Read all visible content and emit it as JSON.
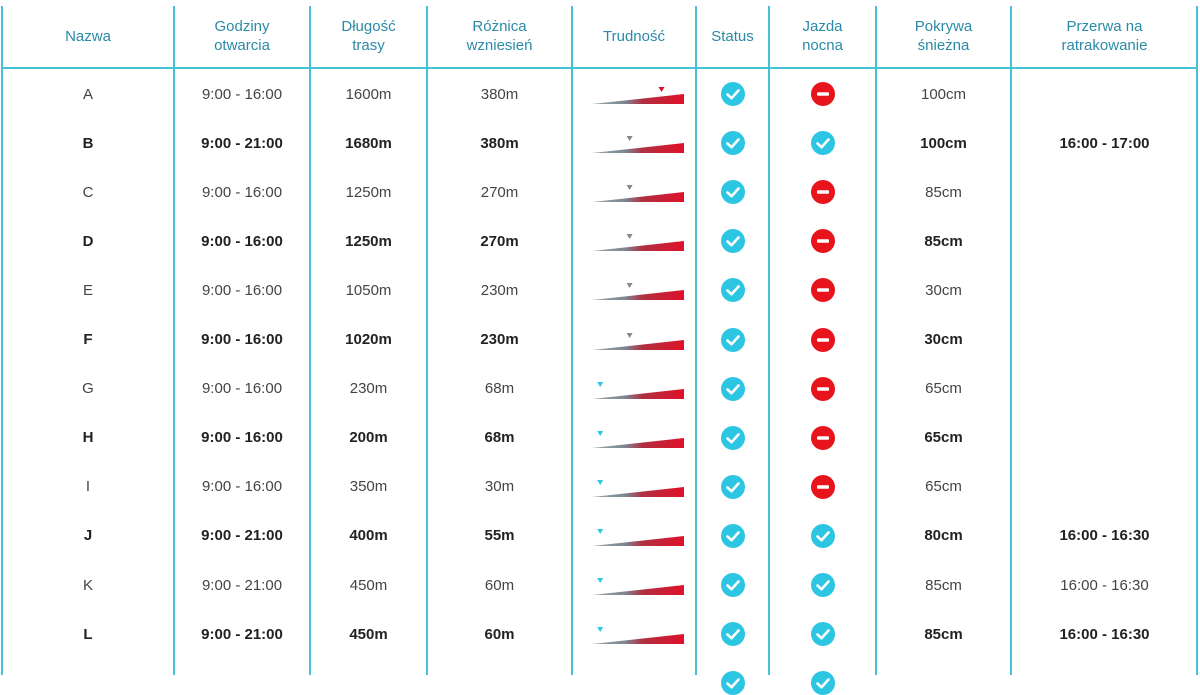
{
  "colors": {
    "border": "#46c2d6",
    "header_text": "#2b8aa6",
    "status_ok": "#2cc6e3",
    "status_closed": "#e8141c",
    "difficulty_red": "#e0102a",
    "difficulty_gray": "#888888"
  },
  "headers": {
    "name": "Nazwa",
    "hours": "Godziny\notwarcia",
    "length": "Długość\ntrasy",
    "elevation": "Różnica\nwzniesień",
    "difficulty": "Trudność",
    "status": "Status",
    "night": "Jazda\nnocna",
    "snow": "Pokrywa\nśnieżna",
    "grooming": "Przerwa na\nratrakowanie"
  },
  "rows": [
    {
      "name": "A",
      "hours": "9:00 - 16:00",
      "length": "1600m",
      "elevation": "380m",
      "difficulty": 0.78,
      "difficulty_marker": "red",
      "status": "open-check-icon",
      "night": "closed-icon",
      "snow": "100cm",
      "grooming": "",
      "bold": false
    },
    {
      "name": "B",
      "hours": "9:00 - 21:00",
      "length": "1680m",
      "elevation": "380m",
      "difficulty": 0.4,
      "difficulty_marker": "gray",
      "status": "open-check-icon",
      "night": "open-check-icon",
      "snow": "100cm",
      "grooming": "16:00 - 17:00",
      "bold": true
    },
    {
      "name": "C",
      "hours": "9:00 - 16:00",
      "length": "1250m",
      "elevation": "270m",
      "difficulty": 0.4,
      "difficulty_marker": "gray",
      "status": "open-check-icon",
      "night": "closed-icon",
      "snow": "85cm",
      "grooming": "",
      "bold": false
    },
    {
      "name": "D",
      "hours": "9:00 - 16:00",
      "length": "1250m",
      "elevation": "270m",
      "difficulty": 0.4,
      "difficulty_marker": "gray",
      "status": "open-check-icon",
      "night": "closed-icon",
      "snow": "85cm",
      "grooming": "",
      "bold": true
    },
    {
      "name": "E",
      "hours": "9:00 - 16:00",
      "length": "1050m",
      "elevation": "230m",
      "difficulty": 0.4,
      "difficulty_marker": "gray",
      "status": "open-check-icon",
      "night": "closed-icon",
      "snow": "30cm",
      "grooming": "",
      "bold": false
    },
    {
      "name": "F",
      "hours": "9:00 - 16:00",
      "length": "1020m",
      "elevation": "230m",
      "difficulty": 0.4,
      "difficulty_marker": "gray",
      "status": "open-check-icon",
      "night": "closed-icon",
      "snow": "30cm",
      "grooming": "",
      "bold": true
    },
    {
      "name": "G",
      "hours": "9:00 - 16:00",
      "length": "230m",
      "elevation": "68m",
      "difficulty": 0.05,
      "difficulty_marker": "blue",
      "status": "open-check-icon",
      "night": "closed-icon",
      "snow": "65cm",
      "grooming": "",
      "bold": false
    },
    {
      "name": "H",
      "hours": "9:00 - 16:00",
      "length": "200m",
      "elevation": "68m",
      "difficulty": 0.05,
      "difficulty_marker": "blue",
      "status": "open-check-icon",
      "night": "closed-icon",
      "snow": "65cm",
      "grooming": "",
      "bold": true
    },
    {
      "name": "I",
      "hours": "9:00 - 16:00",
      "length": "350m",
      "elevation": "30m",
      "difficulty": 0.05,
      "difficulty_marker": "blue",
      "status": "open-check-icon",
      "night": "closed-icon",
      "snow": "65cm",
      "grooming": "",
      "bold": false
    },
    {
      "name": "J",
      "hours": "9:00 - 21:00",
      "length": "400m",
      "elevation": "55m",
      "difficulty": 0.05,
      "difficulty_marker": "blue",
      "status": "open-check-icon",
      "night": "open-check-icon",
      "snow": "80cm",
      "grooming": "16:00 - 16:30",
      "bold": true
    },
    {
      "name": "K",
      "hours": "9:00 - 21:00",
      "length": "450m",
      "elevation": "60m",
      "difficulty": 0.05,
      "difficulty_marker": "blue",
      "status": "open-check-icon",
      "night": "open-check-icon",
      "snow": "85cm",
      "grooming": "16:00 - 16:30",
      "bold": false
    },
    {
      "name": "L",
      "hours": "9:00 - 21:00",
      "length": "450m",
      "elevation": "60m",
      "difficulty": 0.05,
      "difficulty_marker": "blue",
      "status": "open-check-icon",
      "night": "open-check-icon",
      "snow": "85cm",
      "grooming": "16:00 - 16:30",
      "bold": true
    }
  ]
}
